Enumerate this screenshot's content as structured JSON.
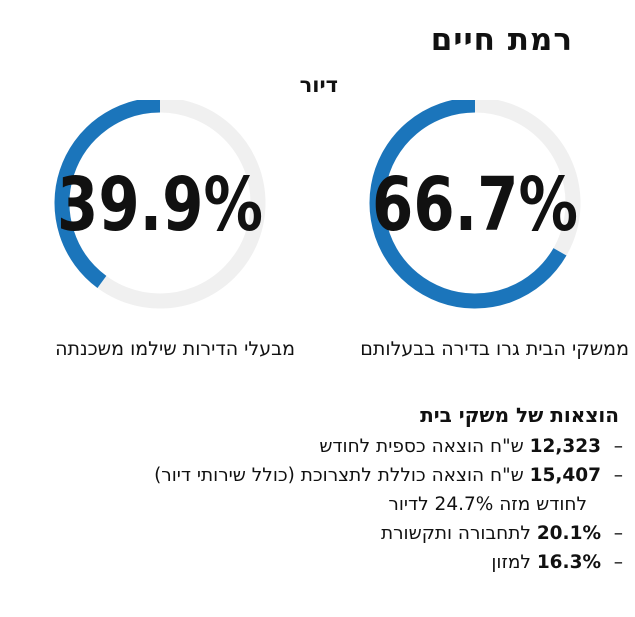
{
  "header": {
    "title": "רמת חיים",
    "section": "דיור"
  },
  "chart_data": [
    {
      "type": "pie",
      "value": 66.7,
      "label": "66.7%",
      "caption": "ממשקי הבית גרו בדירה בבעלותם"
    },
    {
      "type": "pie",
      "value": 39.9,
      "label": "39.9%",
      "caption": "מבעלי הדירות שילמו משכנתה"
    }
  ],
  "expenses": {
    "title": "הוצאות של משקי בית",
    "items": [
      {
        "amount": "12,323",
        "text": " ש\"ח הוצאה כספית לחודש",
        "cont": ""
      },
      {
        "amount": "15,407",
        "text": " ש\"ח הוצאה כוללת לתצרוכת (כולל שירותי דיור)",
        "cont": "לחודש מזה 24.7% לדיור"
      },
      {
        "amount": "20.1%",
        "text": " לתחבורה ותקשורת",
        "cont": ""
      },
      {
        "amount": "16.3%",
        "text": " למזון",
        "cont": ""
      }
    ]
  },
  "colors": {
    "ring_fill": "#1b75bb",
    "ring_track": "#f0f0f0",
    "text": "#111111"
  }
}
